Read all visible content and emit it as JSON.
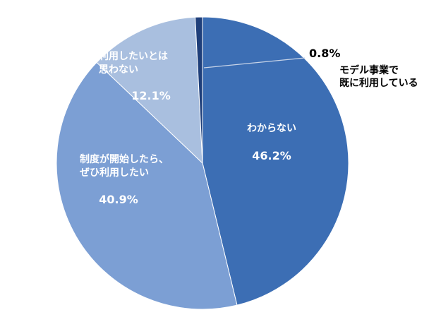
{
  "chart_data": {
    "type": "pie",
    "title": "",
    "start_angle_deg": 0,
    "direction": "clockwise",
    "slices": [
      {
        "label_lines": [
          "わからない"
        ],
        "value": 46.2,
        "value_text": "46.2%",
        "color": "#3c6eb4"
      },
      {
        "label_lines": [
          "制度が開始したら、",
          "ぜひ利用したい"
        ],
        "value": 40.9,
        "value_text": "40.9%",
        "color": "#7c9fd4"
      },
      {
        "label_lines": [
          "利用したいとは",
          "思わない"
        ],
        "value": 12.1,
        "value_text": "12.1%",
        "color": "#a9bfdf"
      },
      {
        "label_lines": [
          "モデル事業で",
          "既に利用している"
        ],
        "value": 0.8,
        "value_text": "0.8%",
        "color": "#1f3f7a"
      }
    ]
  }
}
